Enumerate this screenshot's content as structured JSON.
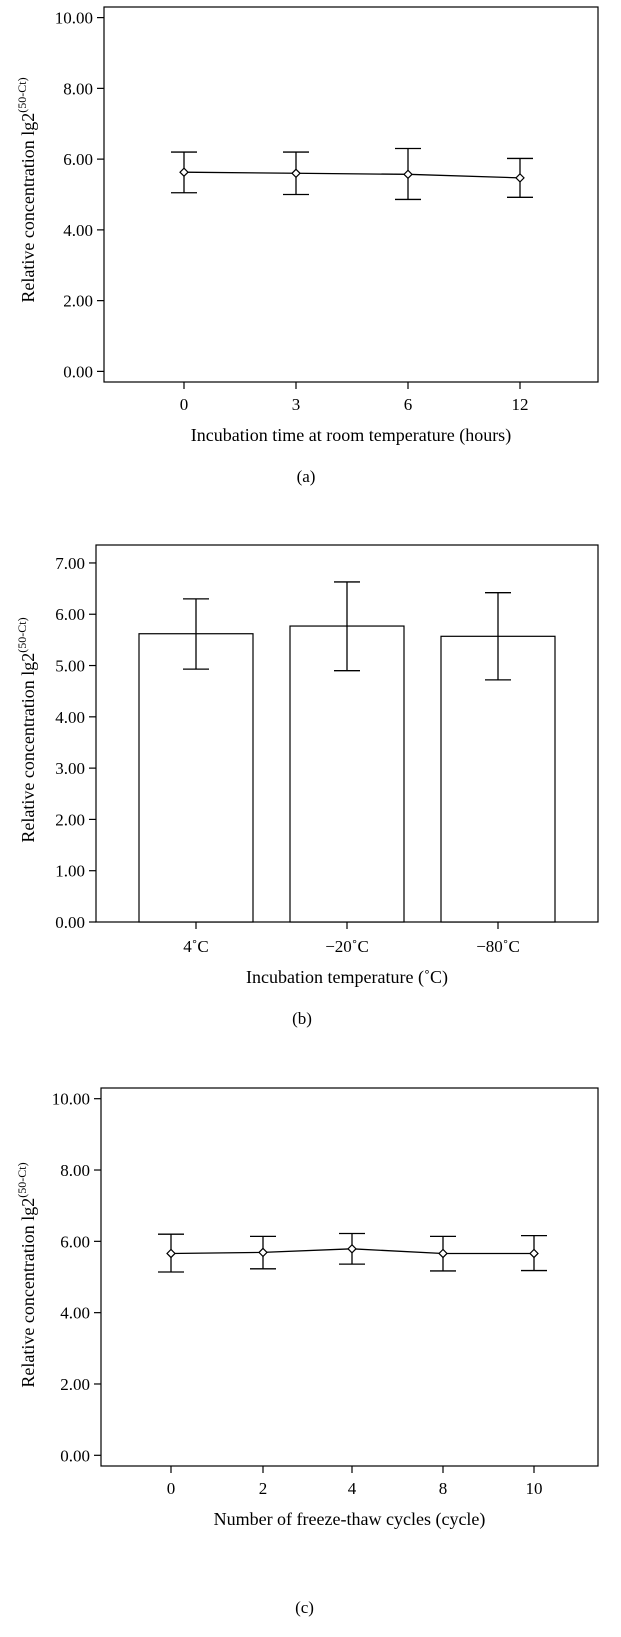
{
  "chart_data": [
    {
      "type": "line",
      "panel_label": "(a)",
      "xlabel": "Incubation time at room temperature (hours)",
      "ylabel": "Relative concentration lg2",
      "ylabel_superscript": "(50-Ct)",
      "categories": [
        "0",
        "3",
        "6",
        "12"
      ],
      "values": [
        5.63,
        5.6,
        5.57,
        5.47
      ],
      "error_lower": [
        5.05,
        5.0,
        4.86,
        4.92
      ],
      "error_upper": [
        6.2,
        6.2,
        6.3,
        6.02
      ],
      "ylim": [
        -0.3,
        10.3
      ],
      "yticks": [
        "0.00",
        "2.00",
        "4.00",
        "6.00",
        "8.00",
        "10.00"
      ],
      "grid": false
    },
    {
      "type": "bar",
      "panel_label": "(b)",
      "xlabel": "Incubation temperature (˚C)",
      "ylabel": "Relative concentration lg2",
      "ylabel_superscript": "(50-Ct)",
      "categories": [
        "4˚C",
        "−20˚C",
        "−80˚C"
      ],
      "values": [
        5.62,
        5.77,
        5.57
      ],
      "error_lower": [
        4.93,
        4.9,
        4.72
      ],
      "error_upper": [
        6.3,
        6.63,
        6.42
      ],
      "ylim": [
        0,
        7.35
      ],
      "yticks": [
        "0.00",
        "1.00",
        "2.00",
        "3.00",
        "4.00",
        "5.00",
        "6.00",
        "7.00"
      ],
      "grid": false
    },
    {
      "type": "line",
      "panel_label": "(c)",
      "xlabel": "Number of freeze-thaw cycles (cycle)",
      "ylabel": "Relative concentration lg2",
      "ylabel_superscript": "(50-Ct)",
      "categories": [
        "0",
        "2",
        "4",
        "8",
        "10"
      ],
      "values": [
        5.66,
        5.69,
        5.79,
        5.66,
        5.66
      ],
      "error_lower": [
        5.14,
        5.23,
        5.36,
        5.17,
        5.18
      ],
      "error_upper": [
        6.2,
        6.14,
        6.22,
        6.14,
        6.16
      ],
      "ylim": [
        -0.3,
        10.3
      ],
      "yticks": [
        "0.00",
        "2.00",
        "4.00",
        "6.00",
        "8.00",
        "10.00"
      ],
      "grid": false
    }
  ]
}
